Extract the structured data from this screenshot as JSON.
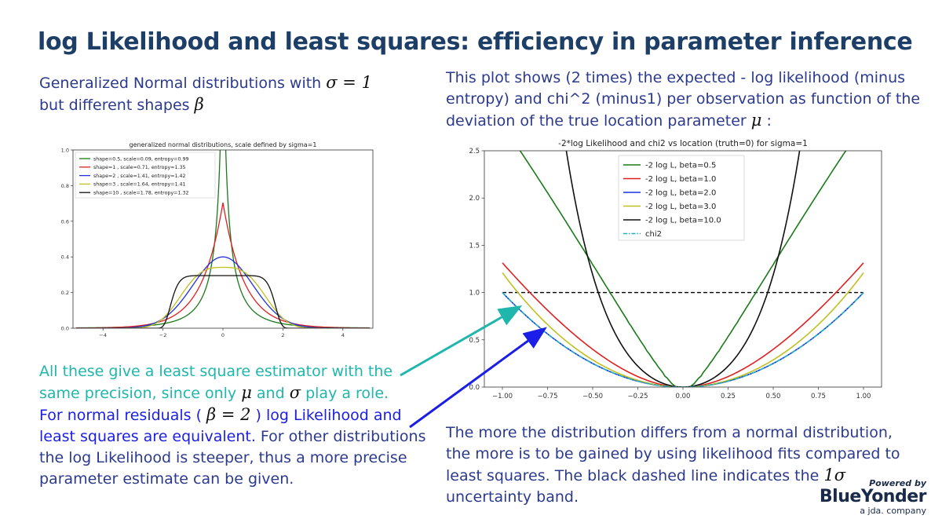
{
  "title": "log Likelihood and least squares:  efficiency in parameter inference",
  "left_intro": {
    "line1": "Generalized Normal distributions with",
    "sigma_expr": "σ = 1",
    "line2": "but different shapes",
    "beta": "β"
  },
  "right_intro": {
    "line1": "This plot shows (2 times) the expected - log likelihood (minus",
    "line2": "entropy) and chi^2 (minus1) per observation as function of the",
    "line3": "deviation of the true location parameter",
    "mu": "μ",
    "colon": ":"
  },
  "left_block": {
    "teal1": "All these give a least square estimator with the",
    "teal2a": "same precision, since only",
    "mu": "μ",
    "and": "and",
    "sigma": "σ",
    "teal2b": "play a role.",
    "blue1a": "For normal residuals (",
    "beta_expr": "β = 2",
    "blue1b": ") log Likelihood and",
    "blue2": "least squares are equivalent.",
    "dark1": " For other distributions",
    "dark2": "the log Likelihood is steeper, thus a more precise",
    "dark3": "parameter estimate can be given."
  },
  "bottom_block": {
    "line1": "The more the distribution differs from a normal distribution,",
    "line2": "the more is to be gained by using likelihood fits compared to",
    "line3a": "least squares. The black dashed line indicates the",
    "one_sigma": "1σ",
    "line4": "uncertainty band."
  },
  "logo": {
    "powered": "Powered by",
    "brand": "BlueYonder",
    "sub": "a jda. company"
  },
  "colors": {
    "accent_teal": "#1fb6ad",
    "accent_blue": "#1a1ee6",
    "title": "#1d3e66"
  },
  "chart_data": [
    {
      "type": "line",
      "title": "generalized normal distributions, scale defined by sigma=1",
      "xlim": [
        -5,
        5
      ],
      "ylim": [
        0,
        1.0
      ],
      "xticks": [
        -4,
        -2,
        0,
        2,
        4
      ],
      "yticks": [
        0.0,
        0.2,
        0.4,
        0.6,
        0.8,
        1.0
      ],
      "legend_position": "top-left",
      "series": [
        {
          "name": "shape=0.5, scale=0.09, entropy=0.99",
          "shape": 0.5,
          "scale": 0.09,
          "color": "#1a7a1a"
        },
        {
          "name": "shape=1  , scale=0.71, entropy=1.35",
          "shape": 1,
          "scale": 0.71,
          "color": "#e02020"
        },
        {
          "name": "shape=2  , scale=1.41, entropy=1.42",
          "shape": 2,
          "scale": 1.41,
          "color": "#2030e0"
        },
        {
          "name": "shape=3  , scale=1.64, entropy=1.41",
          "shape": 3,
          "scale": 1.64,
          "color": "#c0c020"
        },
        {
          "name": "shape=10 , scale=1.78, entropy=1.32",
          "shape": 10,
          "scale": 1.78,
          "color": "#111111"
        }
      ]
    },
    {
      "type": "line",
      "title": "-2*log Likelihood and chi2 vs location (truth=0) for sigma=1",
      "xlim": [
        -1.1,
        1.1
      ],
      "ylim": [
        0,
        2.5
      ],
      "xticks": [
        -1.0,
        -0.75,
        -0.5,
        -0.25,
        0.0,
        0.25,
        0.5,
        0.75,
        1.0
      ],
      "xtick_labels": [
        "−1.00",
        "−0.75",
        "−0.50",
        "−0.25",
        "0.00",
        "0.25",
        "0.50",
        "0.75",
        "1.00"
      ],
      "yticks": [
        0.0,
        0.5,
        1.0,
        1.5,
        2.0,
        2.5
      ],
      "ytick_labels": [
        "0.0",
        "0.5",
        "1.0",
        "1.5",
        "2.0",
        "2.5"
      ],
      "legend_position": "top-center",
      "series": [
        {
          "name": "-2 log L, beta=0.5",
          "beta": 0.5,
          "color": "#1a7a1a",
          "style": "solid"
        },
        {
          "name": "-2 log L, beta=1.0",
          "beta": 1.0,
          "color": "#e02020",
          "style": "solid"
        },
        {
          "name": "-2 log L, beta=2.0",
          "beta": 2.0,
          "color": "#2030e0",
          "style": "solid"
        },
        {
          "name": "-2 log L, beta=3.0",
          "beta": 3.0,
          "color": "#c0c020",
          "style": "solid"
        },
        {
          "name": "-2 log L, beta=10.0",
          "beta": 10.0,
          "color": "#111111",
          "style": "solid"
        },
        {
          "name": "chi2",
          "beta": 2.0,
          "color": "#20b0c0",
          "style": "dashdot"
        }
      ],
      "reference_line": {
        "y": 1.0,
        "x_range": [
          -1.0,
          1.0
        ],
        "color": "#000000",
        "style": "dashed"
      }
    }
  ]
}
